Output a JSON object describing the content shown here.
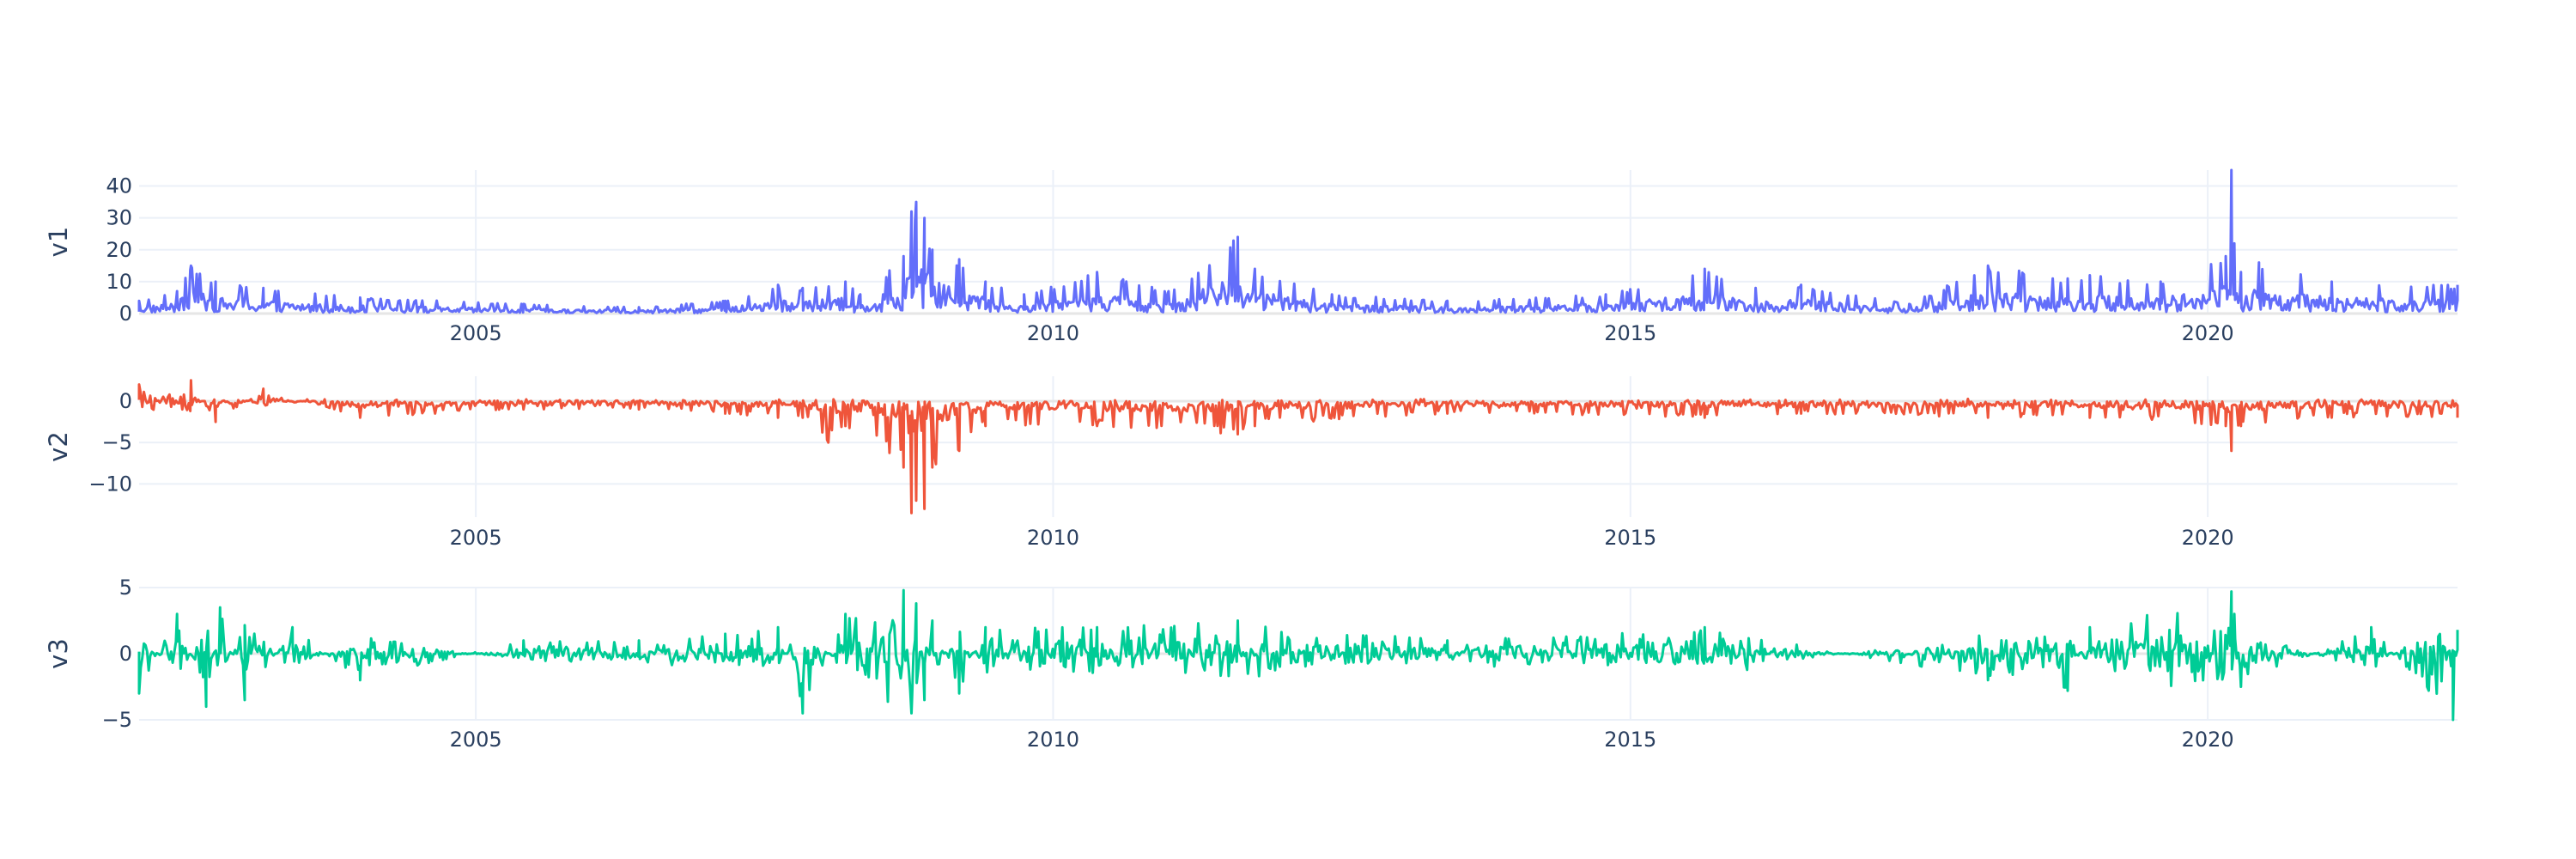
{
  "chart_data": [
    {
      "type": "line",
      "ylabel": "v1",
      "ylim": [
        0,
        45
      ],
      "yticks": [
        0,
        10,
        20,
        30,
        40
      ],
      "xticks": [
        "2005",
        "2010",
        "2015",
        "2020"
      ],
      "color": "#636efa",
      "series": [
        {
          "x": [
            "2002-02-01",
            "2002-06-01",
            "2002-07-15",
            "2002-10-01",
            "2003-03-01",
            "2004-01-01",
            "2005-06-01",
            "2006-06-01",
            "2007-03-01",
            "2007-08-15",
            "2007-11-01",
            "2008-03-15",
            "2008-05-01",
            "2008-09-15",
            "2008-10-10",
            "2008-10-25",
            "2008-11-20",
            "2008-12-15",
            "2009-03-10",
            "2009-06-01",
            "2009-10-01",
            "2010-05-20",
            "2011-01-01",
            "2011-08-08",
            "2011-10-01",
            "2012-06-01",
            "2013-06-01",
            "2014-10-15",
            "2015-08-24",
            "2016-02-01",
            "2016-06-24",
            "2017-06-01",
            "2018-02-05",
            "2018-10-15",
            "2018-12-24",
            "2019-08-05",
            "2020-02-27",
            "2020-03-16",
            "2020-03-25",
            "2020-04-15",
            "2020-06-11",
            "2021-01-27",
            "2022-03-01"
          ],
          "y": [
            4,
            7,
            15,
            10,
            8,
            5,
            3,
            2,
            4,
            9,
            8,
            10,
            6,
            18,
            32,
            35,
            30,
            20,
            17,
            10,
            6,
            13,
            7,
            24,
            14,
            6,
            4,
            6,
            14,
            8,
            9,
            3,
            15,
            11,
            12,
            10,
            18,
            45,
            22,
            13,
            16,
            10,
            9
          ]
        }
      ]
    },
    {
      "type": "line",
      "ylabel": "v2",
      "ylim": [
        -14,
        3
      ],
      "yticks": [
        -10,
        -5,
        0
      ],
      "xticks": [
        "2005",
        "2010",
        "2015",
        "2020"
      ],
      "color": "#ef553b",
      "series": [
        {
          "x": [
            "2002-02-01",
            "2002-07-15",
            "2002-10-01",
            "2003-03-01",
            "2004-01-01",
            "2005-06-01",
            "2006-06-01",
            "2007-03-01",
            "2007-08-15",
            "2007-11-01",
            "2008-01-21",
            "2008-03-15",
            "2008-09-15",
            "2008-10-10",
            "2008-10-25",
            "2008-11-20",
            "2008-12-15",
            "2009-03-10",
            "2009-06-01",
            "2010-05-20",
            "2011-08-08",
            "2011-10-01",
            "2013-06-01",
            "2015-08-24",
            "2016-06-24",
            "2018-02-05",
            "2018-12-24",
            "2020-02-27",
            "2020-03-16",
            "2020-04-15",
            "2021-01-27",
            "2022-03-01"
          ],
          "y": [
            2,
            2.5,
            -2.5,
            1.5,
            -2,
            -1,
            -1,
            -1.5,
            -2,
            -2,
            -5,
            -3,
            -8,
            -13.5,
            -12,
            -13,
            -8,
            -6,
            -3,
            -3,
            -4,
            -3,
            -1.5,
            -2,
            -1.5,
            -2,
            -2,
            -3,
            -6,
            -3,
            -2,
            -2
          ]
        }
      ]
    },
    {
      "type": "line",
      "ylabel": "v3",
      "ylim": [
        -5,
        5
      ],
      "yticks": [
        -5,
        0,
        5
      ],
      "xticks": [
        "2005",
        "2010",
        "2015",
        "2020"
      ],
      "color": "#00cc96",
      "series": [
        {
          "x": [
            "2002-02-01",
            "2002-06-01",
            "2002-09-01",
            "2002-10-15",
            "2003-01-01",
            "2003-06-01",
            "2004-01-01",
            "2005-06-01",
            "2006-06-01",
            "2007-03-01",
            "2007-08-15",
            "2007-11-01",
            "2008-03-15",
            "2008-09-15",
            "2008-10-10",
            "2008-10-25",
            "2008-11-20",
            "2008-12-15",
            "2009-03-10",
            "2009-06-01",
            "2010-05-20",
            "2011-08-08",
            "2013-06-01",
            "2015-08-24",
            "2018-02-05",
            "2018-10-15",
            "2018-12-24",
            "2020-03-16",
            "2020-03-25",
            "2020-04-15",
            "2021-06-01",
            "2022-02-15",
            "2022-03-01"
          ],
          "y": [
            -3,
            3,
            -4,
            3.5,
            -3.5,
            2,
            -2,
            1,
            1,
            1.5,
            2,
            -4.5,
            3,
            4.8,
            -4.5,
            3.8,
            -3.5,
            2.5,
            -3,
            2,
            2,
            2.5,
            1,
            2,
            -2,
            -2.8,
            2,
            4.7,
            3,
            -2.5,
            2,
            -5,
            1.8
          ]
        }
      ]
    }
  ]
}
